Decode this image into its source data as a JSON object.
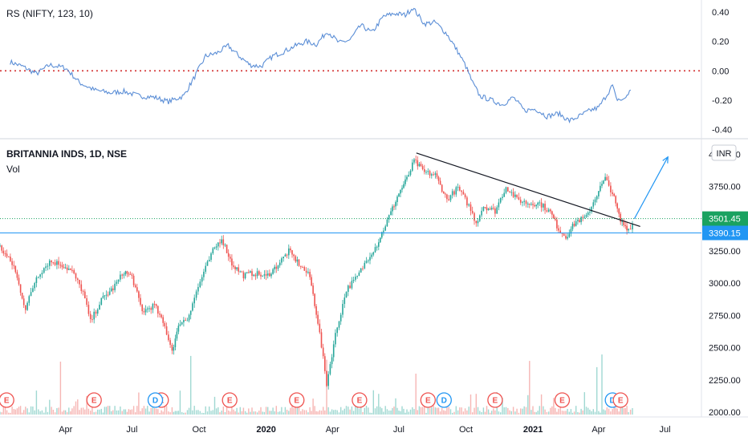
{
  "chart_data": [
    {
      "type": "line",
      "title": "RS (NIFTY, 123, 10)",
      "yticks": [
        "0.40",
        "0.20",
        "0.00",
        "-0.20",
        "-0.40"
      ],
      "ylim": [
        -0.44,
        0.46
      ],
      "zero_line": 0.0,
      "series": [
        {
          "color": "#5b8ed6",
          "points": [
            [
              "2019-01-15",
              0.06
            ],
            [
              "2019-02-01",
              0.03
            ],
            [
              "2019-02-20",
              -0.02
            ],
            [
              "2019-03-10",
              0.04
            ],
            [
              "2019-04-01",
              0.02
            ],
            [
              "2019-04-20",
              -0.08
            ],
            [
              "2019-05-10",
              -0.13
            ],
            [
              "2019-06-01",
              -0.15
            ],
            [
              "2019-06-20",
              -0.14
            ],
            [
              "2019-07-10",
              -0.17
            ],
            [
              "2019-08-01",
              -0.18
            ],
            [
              "2019-08-20",
              -0.21
            ],
            [
              "2019-09-10",
              -0.17
            ],
            [
              "2019-09-25",
              -0.04
            ],
            [
              "2019-10-10",
              0.1
            ],
            [
              "2019-10-25",
              0.12
            ],
            [
              "2019-11-10",
              0.17
            ],
            [
              "2019-11-25",
              0.1
            ],
            [
              "2019-12-10",
              0.04
            ],
            [
              "2019-12-25",
              0.03
            ],
            [
              "2020-01-10",
              0.1
            ],
            [
              "2020-01-25",
              0.13
            ],
            [
              "2020-02-10",
              0.17
            ],
            [
              "2020-02-25",
              0.2
            ],
            [
              "2020-03-10",
              0.18
            ],
            [
              "2020-03-25",
              0.27
            ],
            [
              "2020-04-10",
              0.19
            ],
            [
              "2020-04-25",
              0.21
            ],
            [
              "2020-05-10",
              0.31
            ],
            [
              "2020-05-25",
              0.26
            ],
            [
              "2020-06-10",
              0.37
            ],
            [
              "2020-06-25",
              0.39
            ],
            [
              "2020-07-10",
              0.38
            ],
            [
              "2020-07-20",
              0.43
            ],
            [
              "2020-08-05",
              0.32
            ],
            [
              "2020-08-20",
              0.33
            ],
            [
              "2020-09-05",
              0.25
            ],
            [
              "2020-09-20",
              0.13
            ],
            [
              "2020-10-01",
              0.03
            ],
            [
              "2020-10-10",
              -0.08
            ],
            [
              "2020-10-20",
              -0.17
            ],
            [
              "2020-11-05",
              -0.2
            ],
            [
              "2020-11-20",
              -0.23
            ],
            [
              "2020-12-05",
              -0.18
            ],
            [
              "2020-12-20",
              -0.27
            ],
            [
              "2021-01-05",
              -0.26
            ],
            [
              "2021-01-20",
              -0.31
            ],
            [
              "2021-02-05",
              -0.29
            ],
            [
              "2021-02-20",
              -0.34
            ],
            [
              "2021-03-05",
              -0.31
            ],
            [
              "2021-03-20",
              -0.27
            ],
            [
              "2021-04-01",
              -0.25
            ],
            [
              "2021-04-10",
              -0.18
            ],
            [
              "2021-04-20",
              -0.1
            ],
            [
              "2021-04-25",
              -0.19
            ],
            [
              "2021-05-05",
              -0.2
            ],
            [
              "2021-05-15",
              -0.13
            ]
          ]
        }
      ]
    },
    {
      "type": "candlestick",
      "title": "BRITANNIA INDS, 1D, NSE",
      "volume_label": "Vol",
      "currency": "INR",
      "yticks": [
        "4000.00",
        "3750.00",
        "3500.00",
        "3250.00",
        "3000.00",
        "2750.00",
        "2500.00",
        "2250.00",
        "2000.00"
      ],
      "ylim": [
        1975,
        4090
      ],
      "xticks": [
        "Apr",
        "Jul",
        "Oct",
        "2020",
        "Apr",
        "Jul",
        "Oct",
        "2021",
        "Apr",
        "Jul"
      ],
      "xtick_dates": [
        "2019-04-01",
        "2019-07-01",
        "2019-10-01",
        "2020-01-01",
        "2020-04-01",
        "2020-07-01",
        "2020-10-01",
        "2021-01-01",
        "2021-04-01",
        "2021-07-01"
      ],
      "x_range": [
        "2019-01-01",
        "2021-08-20"
      ],
      "up_color": "#26a69a",
      "down_color": "#ef5350",
      "price_path": [
        [
          "2019-01-01",
          3280
        ],
        [
          "2019-01-20",
          3130
        ],
        [
          "2019-02-05",
          2800
        ],
        [
          "2019-02-20",
          3050
        ],
        [
          "2019-03-10",
          3170
        ],
        [
          "2019-03-25",
          3150
        ],
        [
          "2019-04-10",
          3090
        ],
        [
          "2019-04-25",
          2930
        ],
        [
          "2019-05-05",
          2700
        ],
        [
          "2019-05-20",
          2870
        ],
        [
          "2019-06-05",
          2960
        ],
        [
          "2019-06-20",
          3090
        ],
        [
          "2019-07-01",
          3050
        ],
        [
          "2019-07-15",
          2780
        ],
        [
          "2019-08-01",
          2830
        ],
        [
          "2019-08-15",
          2660
        ],
        [
          "2019-08-25",
          2480
        ],
        [
          "2019-09-05",
          2700
        ],
        [
          "2019-09-15",
          2720
        ],
        [
          "2019-09-22",
          2850
        ],
        [
          "2019-10-05",
          3050
        ],
        [
          "2019-10-20",
          3250
        ],
        [
          "2019-11-01",
          3350
        ],
        [
          "2019-11-15",
          3150
        ],
        [
          "2019-12-01",
          3060
        ],
        [
          "2019-12-15",
          3080
        ],
        [
          "2020-01-01",
          3050
        ],
        [
          "2020-01-15",
          3130
        ],
        [
          "2020-02-01",
          3250
        ],
        [
          "2020-02-15",
          3150
        ],
        [
          "2020-03-01",
          3050
        ],
        [
          "2020-03-12",
          2700
        ],
        [
          "2020-03-24",
          2220
        ],
        [
          "2020-04-05",
          2600
        ],
        [
          "2020-04-20",
          2950
        ],
        [
          "2020-05-05",
          3050
        ],
        [
          "2020-05-20",
          3200
        ],
        [
          "2020-06-01",
          3300
        ],
        [
          "2020-06-10",
          3420
        ],
        [
          "2020-06-20",
          3550
        ],
        [
          "2020-07-01",
          3700
        ],
        [
          "2020-07-12",
          3810
        ],
        [
          "2020-07-22",
          3950
        ],
        [
          "2020-08-05",
          3860
        ],
        [
          "2020-08-20",
          3840
        ],
        [
          "2020-09-05",
          3650
        ],
        [
          "2020-09-20",
          3740
        ],
        [
          "2020-10-05",
          3600
        ],
        [
          "2020-10-15",
          3470
        ],
        [
          "2020-10-25",
          3600
        ],
        [
          "2020-11-10",
          3560
        ],
        [
          "2020-11-25",
          3750
        ],
        [
          "2020-12-10",
          3650
        ],
        [
          "2020-12-25",
          3620
        ],
        [
          "2021-01-10",
          3620
        ],
        [
          "2021-01-25",
          3550
        ],
        [
          "2021-02-05",
          3420
        ],
        [
          "2021-02-15",
          3360
        ],
        [
          "2021-03-01",
          3480
        ],
        [
          "2021-03-15",
          3510
        ],
        [
          "2021-04-01",
          3720
        ],
        [
          "2021-04-10",
          3810
        ],
        [
          "2021-04-20",
          3700
        ],
        [
          "2021-05-01",
          3480
        ],
        [
          "2021-05-12",
          3420
        ],
        [
          "2021-05-20",
          3480
        ]
      ],
      "volume_spike_dates": [
        "2019-03-25",
        "2019-09-20",
        "2020-03-25",
        "2020-07-25",
        "2020-12-28",
        "2021-03-30",
        "2021-04-05"
      ],
      "horizontal_lines": [
        {
          "value": 3501.45,
          "label": "3501.45",
          "color": "#1aa260",
          "style": "dotted"
        },
        {
          "value": 3390.15,
          "label": "3390.15",
          "color": "#2196f3",
          "style": "solid"
        }
      ],
      "trend_line": {
        "from": [
          "2020-07-25",
          4010
        ],
        "to": [
          "2021-05-28",
          3440
        ],
        "color": "#131722"
      },
      "projection_arrow": {
        "from": [
          "2021-05-20",
          3500
        ],
        "to": [
          "2021-07-05",
          3980
        ],
        "color": "#2196f3"
      },
      "events": [
        {
          "label": "E",
          "date": "2019-01-10",
          "kind": "earnings"
        },
        {
          "label": "E",
          "date": "2019-05-10",
          "kind": "earnings"
        },
        {
          "label": "E",
          "date": "2019-08-10",
          "kind": "earnings"
        },
        {
          "label": "D",
          "date": "2019-08-02",
          "kind": "dividend"
        },
        {
          "label": "E",
          "date": "2019-11-12",
          "kind": "earnings"
        },
        {
          "label": "E",
          "date": "2020-02-12",
          "kind": "earnings"
        },
        {
          "label": "E",
          "date": "2020-05-08",
          "kind": "earnings"
        },
        {
          "label": "E",
          "date": "2020-08-10",
          "kind": "earnings"
        },
        {
          "label": "D",
          "date": "2020-09-01",
          "kind": "dividend"
        },
        {
          "label": "E",
          "date": "2020-11-10",
          "kind": "earnings"
        },
        {
          "label": "E",
          "date": "2021-02-10",
          "kind": "earnings"
        },
        {
          "label": "D",
          "date": "2021-04-20",
          "kind": "dividend"
        },
        {
          "label": "E",
          "date": "2021-05-01",
          "kind": "earnings"
        }
      ]
    }
  ]
}
